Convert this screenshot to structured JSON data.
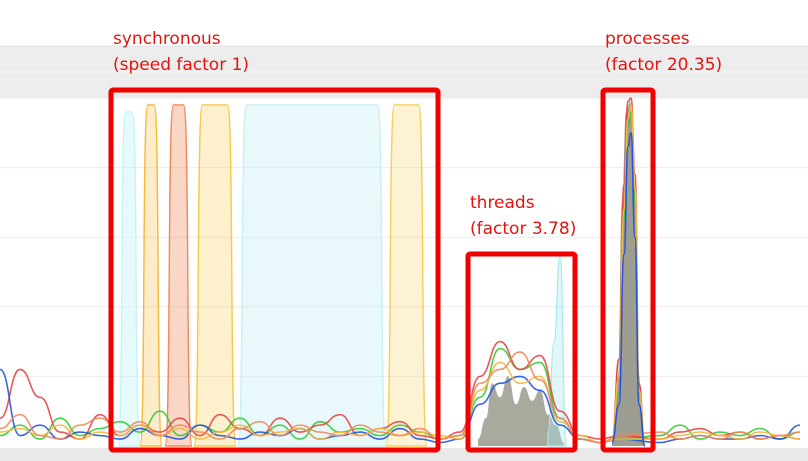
{
  "chart_data": {
    "type": "area",
    "title": "",
    "xlabel": "",
    "ylabel": "",
    "ylim": [
      0,
      100
    ],
    "grid": true,
    "legend": "none",
    "colors": {
      "annotation": "#f20000",
      "annotation_text": "#e3140f",
      "header_band": "#ededed",
      "grid": "#e8e8e8",
      "series": [
        "#5fe0ea",
        "#f5b93c",
        "#ef8a5a",
        "#f7c94a",
        "#b8e6ec",
        "#f6d055",
        "#33cc33",
        "#e84545",
        "#2255dd",
        "#8c8c7e"
      ]
    },
    "phases": [
      {
        "label": "synchronous",
        "sublabel": "(speed factor 1)",
        "x_range": [
          115,
          435
        ],
        "peak": 98
      },
      {
        "label": "threads",
        "sublabel": "(factor 3.78)",
        "x_range": [
          472,
          572
        ],
        "peak": 52
      },
      {
        "label": "processes",
        "sublabel": "(factor 20.35)",
        "x_range": [
          607,
          650
        ],
        "peak": 98
      }
    ],
    "synchronous_plateaus": [
      {
        "color": "#c7f3f6",
        "opacity": 0.45,
        "start": 118,
        "end": 140,
        "peak": 96
      },
      {
        "color": "#f5b93c",
        "opacity": 0.28,
        "start": 140,
        "end": 162,
        "peak": 98
      },
      {
        "color": "#ef8a5a",
        "opacity": 0.35,
        "start": 165,
        "end": 192,
        "peak": 98
      },
      {
        "color": "#f7c94a",
        "opacity": 0.28,
        "start": 194,
        "end": 236,
        "peak": 98
      },
      {
        "color": "#c7f0f4",
        "opacity": 0.4,
        "start": 238,
        "end": 386,
        "peak": 98
      },
      {
        "color": "#f6d055",
        "opacity": 0.25,
        "start": 386,
        "end": 427,
        "peak": 98
      }
    ],
    "threads_area": {
      "color": "#8c8c7e",
      "x": [
        478,
        486,
        492,
        500,
        508,
        516,
        524,
        532,
        540,
        548,
        556,
        564
      ],
      "y": [
        2,
        8,
        18,
        14,
        20,
        12,
        17,
        13,
        16,
        9,
        6,
        1
      ]
    },
    "threads_spike": {
      "color": "#a6e8ee",
      "x": [
        548,
        554,
        560,
        566
      ],
      "y": [
        4,
        30,
        55,
        2
      ]
    },
    "processes_area": {
      "color": "#8c8c7e",
      "x": [
        612,
        618,
        622,
        626,
        630,
        634,
        638,
        644
      ],
      "y": [
        2,
        20,
        70,
        96,
        99,
        80,
        22,
        1
      ]
    },
    "processes_lines": [
      {
        "color": "#e84545",
        "x": [
          612,
          619,
          624,
          628,
          631,
          635,
          639,
          645
        ],
        "y": [
          1,
          25,
          75,
          99,
          100,
          78,
          18,
          0
        ]
      },
      {
        "color": "#33cc33",
        "x": [
          612,
          619,
          624,
          628,
          631,
          635,
          639,
          645
        ],
        "y": [
          1,
          15,
          65,
          92,
          96,
          70,
          15,
          0
        ]
      },
      {
        "color": "#f5b93c",
        "x": [
          612,
          619,
          624,
          628,
          631,
          635,
          639,
          645
        ],
        "y": [
          1,
          20,
          68,
          94,
          98,
          74,
          16,
          0
        ]
      },
      {
        "color": "#2255dd",
        "x": [
          612,
          619,
          624,
          628,
          631,
          635,
          639,
          645
        ],
        "y": [
          1,
          12,
          55,
          86,
          90,
          60,
          12,
          0
        ]
      }
    ],
    "noise_lines": [
      {
        "color": "#33cc33",
        "x": [
          0,
          20,
          40,
          60,
          80,
          100,
          120,
          140,
          160,
          180,
          200,
          220,
          240,
          260,
          280,
          300,
          320,
          340,
          360,
          380,
          400,
          420,
          440,
          460,
          480,
          500,
          520,
          540,
          560,
          580,
          600,
          620,
          660,
          680,
          700,
          720,
          740,
          760,
          780,
          800
        ],
        "y": [
          3,
          6,
          2,
          8,
          3,
          5,
          7,
          4,
          10,
          3,
          6,
          4,
          8,
          3,
          6,
          2,
          7,
          4,
          5,
          3,
          6,
          4,
          2,
          3,
          14,
          28,
          22,
          24,
          8,
          2,
          1,
          2,
          3,
          6,
          2,
          4,
          3,
          5,
          2,
          4
        ]
      },
      {
        "color": "#e84545",
        "x": [
          0,
          20,
          40,
          60,
          80,
          100,
          120,
          140,
          160,
          180,
          200,
          220,
          240,
          260,
          280,
          300,
          320,
          340,
          360,
          380,
          400,
          420,
          440,
          460,
          480,
          500,
          520,
          540,
          560,
          580,
          600,
          620,
          660,
          680,
          700,
          720,
          740,
          760,
          780,
          800
        ],
        "y": [
          8,
          22,
          14,
          4,
          2,
          9,
          3,
          6,
          4,
          8,
          3,
          9,
          5,
          3,
          8,
          4,
          6,
          9,
          3,
          5,
          7,
          3,
          2,
          4,
          20,
          30,
          22,
          26,
          10,
          3,
          2,
          3,
          2,
          4,
          5,
          3,
          4,
          2,
          3,
          2
        ]
      },
      {
        "color": "#2255dd",
        "x": [
          0,
          20,
          40,
          60,
          80,
          100,
          120,
          140,
          160,
          180,
          200,
          220,
          240,
          260,
          280,
          300,
          320,
          340,
          360,
          380,
          400,
          420,
          440,
          460,
          480,
          500,
          520,
          540,
          560,
          580,
          600,
          620,
          660,
          680,
          700,
          720,
          740,
          760,
          780,
          800
        ],
        "y": [
          22,
          3,
          6,
          2,
          4,
          3,
          2,
          5,
          3,
          2,
          6,
          3,
          2,
          4,
          3,
          5,
          2,
          3,
          4,
          2,
          5,
          2,
          1,
          2,
          12,
          18,
          20,
          16,
          6,
          2,
          1,
          2,
          1,
          2,
          3,
          2,
          2,
          3,
          2,
          6
        ]
      },
      {
        "color": "#f5b93c",
        "x": [
          0,
          20,
          40,
          60,
          80,
          100,
          120,
          140,
          160,
          180,
          200,
          220,
          240,
          260,
          280,
          300,
          320,
          340,
          360,
          380,
          400,
          420,
          440,
          460,
          480,
          500,
          520,
          540,
          560,
          580,
          600,
          620,
          660,
          680,
          700,
          720,
          740,
          760,
          780,
          800
        ],
        "y": [
          4,
          5,
          3,
          6,
          2,
          4,
          3,
          6,
          3,
          5,
          2,
          4,
          6,
          3,
          4,
          5,
          2,
          4,
          3,
          5,
          3,
          4,
          3,
          2,
          16,
          24,
          18,
          20,
          7,
          3,
          1,
          2,
          2,
          3,
          4,
          3,
          2,
          4,
          3,
          2
        ]
      },
      {
        "color": "#ef8a5a",
        "x": [
          0,
          20,
          40,
          60,
          80,
          100,
          120,
          140,
          160,
          180,
          200,
          220,
          240,
          260,
          280,
          300,
          320,
          340,
          360,
          380,
          400,
          420,
          440,
          460,
          480,
          500,
          520,
          540,
          560,
          580,
          600,
          620,
          660,
          680,
          700,
          720,
          740,
          760,
          780,
          800
        ],
        "y": [
          5,
          9,
          3,
          2,
          6,
          8,
          4,
          7,
          3,
          6,
          4,
          2,
          5,
          7,
          3,
          6,
          4,
          3,
          6,
          4,
          3,
          5,
          2,
          3,
          18,
          22,
          27,
          19,
          8,
          2,
          1,
          3,
          4,
          2,
          3,
          2,
          4,
          2,
          3,
          4
        ]
      }
    ]
  }
}
